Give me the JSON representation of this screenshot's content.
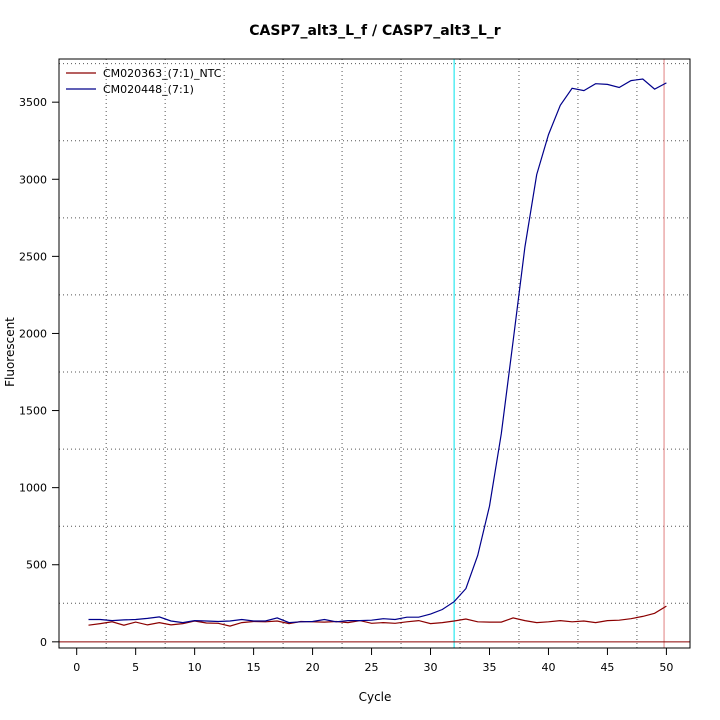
{
  "chart_data": {
    "type": "line",
    "title": "CASP7_alt3_L_f / CASP7_alt3_L_r",
    "xlabel": "Cycle",
    "ylabel": "Fluorescent",
    "xlim": [
      -1.5,
      52
    ],
    "ylim": [
      -40,
      3780
    ],
    "x_ticks": [
      0,
      5,
      10,
      15,
      20,
      25,
      30,
      35,
      40,
      45,
      50
    ],
    "y_ticks": [
      0,
      500,
      1000,
      1500,
      2000,
      2500,
      3000,
      3500
    ],
    "grid": true,
    "legend_position": "top-left",
    "threshold_line": {
      "y": 0,
      "color": "#8b0000"
    },
    "vertical_lines": [
      {
        "x": 32,
        "color": "#00e5ee"
      },
      {
        "x": 49.8,
        "color": "#e08080"
      }
    ],
    "series": [
      {
        "name": "CM020363_(7:1)_NTC",
        "color": "#8b0000",
        "x": [
          1,
          2,
          3,
          4,
          5,
          6,
          7,
          8,
          9,
          10,
          11,
          12,
          13,
          14,
          15,
          16,
          17,
          18,
          19,
          20,
          21,
          22,
          23,
          24,
          25,
          26,
          27,
          28,
          29,
          30,
          31,
          32,
          33,
          34,
          35,
          36,
          37,
          38,
          39,
          40,
          41,
          42,
          43,
          44,
          45,
          46,
          47,
          48,
          49,
          50
        ],
        "y": [
          108,
          118,
          130,
          108,
          128,
          110,
          125,
          110,
          118,
          135,
          122,
          120,
          102,
          125,
          132,
          130,
          135,
          118,
          132,
          130,
          128,
          132,
          125,
          138,
          120,
          125,
          120,
          130,
          138,
          118,
          125,
          135,
          148,
          130,
          128,
          128,
          155,
          138,
          125,
          130,
          138,
          130,
          135,
          125,
          138,
          140,
          150,
          165,
          185,
          232
        ]
      },
      {
        "name": "CM020448_(7:1)",
        "color": "#00008b",
        "x": [
          1,
          2,
          3,
          4,
          5,
          6,
          7,
          8,
          9,
          10,
          11,
          12,
          13,
          14,
          15,
          16,
          17,
          18,
          19,
          20,
          21,
          22,
          23,
          24,
          25,
          26,
          27,
          28,
          29,
          30,
          31,
          32,
          33,
          34,
          35,
          36,
          37,
          38,
          39,
          40,
          41,
          42,
          43,
          44,
          45,
          46,
          47,
          48,
          49,
          50
        ],
        "y": [
          145,
          145,
          138,
          142,
          145,
          152,
          162,
          135,
          125,
          138,
          135,
          132,
          135,
          145,
          135,
          135,
          155,
          125,
          130,
          132,
          145,
          130,
          138,
          138,
          140,
          150,
          145,
          160,
          160,
          180,
          210,
          260,
          345,
          560,
          880,
          1350,
          1950,
          2560,
          3030,
          3290,
          3480,
          3590,
          3575,
          3620,
          3615,
          3595,
          3640,
          3650,
          3585,
          3625
        ]
      }
    ]
  }
}
